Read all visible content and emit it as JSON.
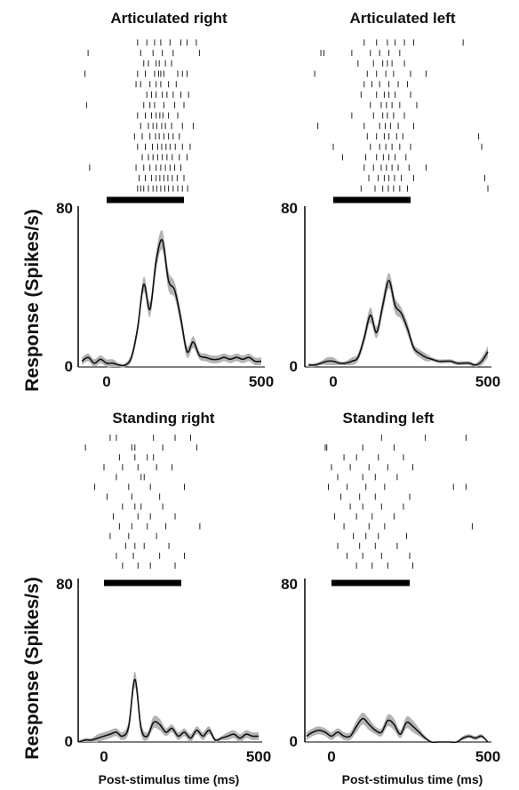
{
  "chart_data": {
    "type": "line",
    "ylabel": "Response (Spikes/s)",
    "xlabel": "Post-stimulus time (ms)",
    "xlim": [
      -80,
      500
    ],
    "ylim": [
      0,
      80
    ],
    "x_ticks": [
      "0",
      "500"
    ],
    "y_ticks": [
      "0",
      "80"
    ],
    "stimulus_bar_ms": [
      0,
      250
    ],
    "colors": {
      "mean_line": "#111111",
      "error_band": "#b3b3b3",
      "raster_tick": "#222222"
    },
    "panels": [
      {
        "title": "Articulated right",
        "x": [
          -80,
          -60,
          -40,
          -20,
          0,
          20,
          40,
          60,
          80,
          100,
          120,
          140,
          160,
          180,
          200,
          220,
          240,
          260,
          280,
          300,
          320,
          340,
          360,
          380,
          400,
          420,
          440,
          460,
          480,
          500
        ],
        "mean": [
          3,
          5,
          2,
          4,
          2,
          2,
          1,
          1,
          5,
          20,
          43,
          30,
          55,
          66,
          45,
          40,
          25,
          8,
          13,
          6,
          5,
          4,
          4,
          5,
          4,
          5,
          4,
          5,
          3,
          3
        ],
        "sem": [
          2,
          2,
          2,
          2,
          2,
          2,
          1,
          1,
          2,
          3,
          4,
          4,
          5,
          5,
          5,
          4,
          4,
          3,
          3,
          2,
          2,
          2,
          2,
          2,
          2,
          2,
          2,
          2,
          2,
          2
        ]
      },
      {
        "title": "Articulated left",
        "x": [
          -80,
          -60,
          -40,
          -20,
          0,
          20,
          40,
          60,
          80,
          100,
          120,
          140,
          160,
          180,
          200,
          220,
          240,
          260,
          280,
          300,
          320,
          340,
          360,
          380,
          400,
          420,
          440,
          460,
          480,
          500
        ],
        "mean": [
          1,
          1,
          2,
          3,
          3,
          2,
          2,
          3,
          5,
          15,
          27,
          18,
          32,
          45,
          32,
          28,
          20,
          10,
          7,
          5,
          4,
          3,
          3,
          3,
          2,
          2,
          2,
          1,
          3,
          8
        ],
        "sem": [
          1,
          1,
          1,
          2,
          2,
          1,
          1,
          2,
          2,
          3,
          4,
          3,
          4,
          4,
          4,
          3,
          3,
          2,
          2,
          2,
          1,
          1,
          1,
          1,
          1,
          1,
          1,
          1,
          2,
          3
        ]
      },
      {
        "title": "Standing right",
        "x": [
          -80,
          -60,
          -40,
          -20,
          0,
          20,
          40,
          60,
          80,
          100,
          120,
          140,
          160,
          180,
          200,
          220,
          240,
          260,
          280,
          300,
          320,
          340,
          360,
          380,
          400,
          420,
          440,
          460,
          480,
          500
        ],
        "mean": [
          0,
          1,
          1,
          2,
          3,
          4,
          5,
          3,
          8,
          32,
          7,
          3,
          10,
          9,
          5,
          7,
          3,
          5,
          2,
          6,
          3,
          6,
          1,
          2,
          3,
          4,
          2,
          4,
          3,
          3
        ],
        "sem": [
          1,
          1,
          1,
          2,
          2,
          2,
          2,
          2,
          3,
          4,
          3,
          2,
          3,
          3,
          2,
          2,
          2,
          2,
          2,
          2,
          2,
          2,
          1,
          1,
          2,
          2,
          2,
          2,
          2,
          2
        ]
      },
      {
        "title": "Standing left",
        "x": [
          -80,
          -60,
          -40,
          -20,
          0,
          20,
          40,
          60,
          80,
          100,
          120,
          140,
          160,
          180,
          200,
          220,
          240,
          260,
          280,
          300,
          320,
          340,
          360,
          380,
          400,
          420,
          440,
          460,
          480,
          500
        ],
        "mean": [
          3,
          5,
          6,
          5,
          3,
          5,
          3,
          3,
          8,
          12,
          9,
          6,
          5,
          11,
          9,
          4,
          10,
          8,
          5,
          2,
          0,
          0,
          0,
          0,
          0,
          2,
          3,
          2,
          3,
          0
        ],
        "sem": [
          2,
          2,
          2,
          2,
          2,
          2,
          2,
          2,
          3,
          3,
          3,
          2,
          2,
          3,
          3,
          2,
          3,
          3,
          2,
          1,
          0,
          0,
          0,
          0,
          0,
          1,
          1,
          1,
          1,
          0
        ]
      }
    ],
    "raster_spikes": [
      [
        [
          100,
          130,
          155,
          175,
          205,
          240,
          260,
          290
        ],
        [
          -60,
          110,
          150,
          180,
          215,
          300
        ],
        [
          120,
          135,
          160,
          170,
          190,
          210
        ],
        [
          -70,
          100,
          125,
          155,
          168,
          175,
          185,
          230,
          245,
          260
        ],
        [
          95,
          110,
          140,
          160,
          175,
          200,
          225
        ],
        [
          130,
          145,
          160,
          180,
          195,
          215,
          240,
          265
        ],
        [
          -65,
          120,
          140,
          155,
          185,
          220,
          250
        ],
        [
          100,
          125,
          145,
          160,
          172,
          182,
          200,
          230
        ],
        [
          110,
          135,
          150,
          162,
          178,
          190,
          210,
          245,
          280
        ],
        [
          90,
          115,
          140,
          158,
          170,
          185,
          200,
          215,
          235
        ],
        [
          100,
          125,
          148,
          165,
          178,
          192,
          205,
          222,
          245,
          270
        ],
        [
          115,
          135,
          150,
          165,
          180,
          195,
          212,
          235,
          260
        ],
        [
          -55,
          95,
          120,
          140,
          160,
          175,
          190,
          205,
          220,
          240
        ],
        [
          105,
          125,
          145,
          160,
          172,
          185,
          198,
          212,
          228,
          250
        ],
        [
          100,
          110,
          120,
          135,
          150,
          162,
          175,
          188,
          200,
          215,
          230,
          245,
          262
        ]
      ],
      [
        [
          100,
          140,
          175,
          200,
          230,
          260,
          420
        ],
        [
          -40,
          -30,
          60,
          120,
          150,
          180,
          215
        ],
        [
          80,
          130,
          160,
          175,
          190,
          230
        ],
        [
          -60,
          110,
          140,
          170,
          195,
          250,
          300
        ],
        [
          100,
          125,
          150,
          180,
          210,
          240
        ],
        [
          90,
          140,
          165,
          180,
          200,
          250
        ],
        [
          120,
          155,
          172,
          190,
          215,
          270
        ],
        [
          60,
          130,
          160,
          175,
          195,
          230
        ],
        [
          -50,
          100,
          150,
          168,
          185,
          210,
          260
        ],
        [
          110,
          140,
          165,
          180,
          205,
          225,
          470
        ],
        [
          0,
          120,
          150,
          170,
          190,
          215,
          250,
          480
        ],
        [
          30,
          105,
          140,
          162,
          180,
          200,
          235
        ],
        [
          100,
          130,
          155,
          172,
          190,
          210,
          245,
          300
        ],
        [
          115,
          145,
          165,
          180,
          198,
          220,
          260,
          490
        ],
        [
          90,
          135,
          160,
          178,
          195,
          215,
          240,
          500
        ]
      ],
      [
        [
          20,
          40,
          160,
          230,
          280
        ],
        [
          -60,
          90,
          100,
          190,
          300
        ],
        [
          50,
          100,
          140,
          160
        ],
        [
          0,
          60,
          110,
          170,
          220
        ],
        [
          40,
          120,
          130
        ],
        [
          -30,
          80,
          150,
          260
        ],
        [
          10,
          90,
          180
        ],
        [
          60,
          100,
          120,
          190
        ],
        [
          30,
          110,
          150,
          230
        ],
        [
          50,
          90,
          140,
          200,
          310
        ],
        [
          20,
          80,
          170
        ],
        [
          70,
          100,
          130,
          210
        ],
        [
          40,
          95,
          180,
          260
        ],
        [
          60,
          110,
          150,
          230
        ]
      ],
      [
        [
          160,
          300,
          430
        ],
        [
          -20,
          -15,
          100,
          200
        ],
        [
          40,
          80,
          150,
          230
        ],
        [
          0,
          60,
          120,
          180,
          260
        ],
        [
          20,
          100,
          140,
          210
        ],
        [
          -10,
          50,
          110,
          170,
          390,
          430
        ],
        [
          30,
          90,
          140,
          250
        ],
        [
          60,
          100,
          160,
          230
        ],
        [
          10,
          80,
          130,
          200
        ],
        [
          40,
          120,
          170,
          450
        ],
        [
          70,
          110,
          150,
          240
        ],
        [
          20,
          90,
          140,
          210
        ],
        [
          50,
          100,
          160,
          250
        ],
        [
          80,
          130,
          180,
          260
        ]
      ]
    ]
  }
}
